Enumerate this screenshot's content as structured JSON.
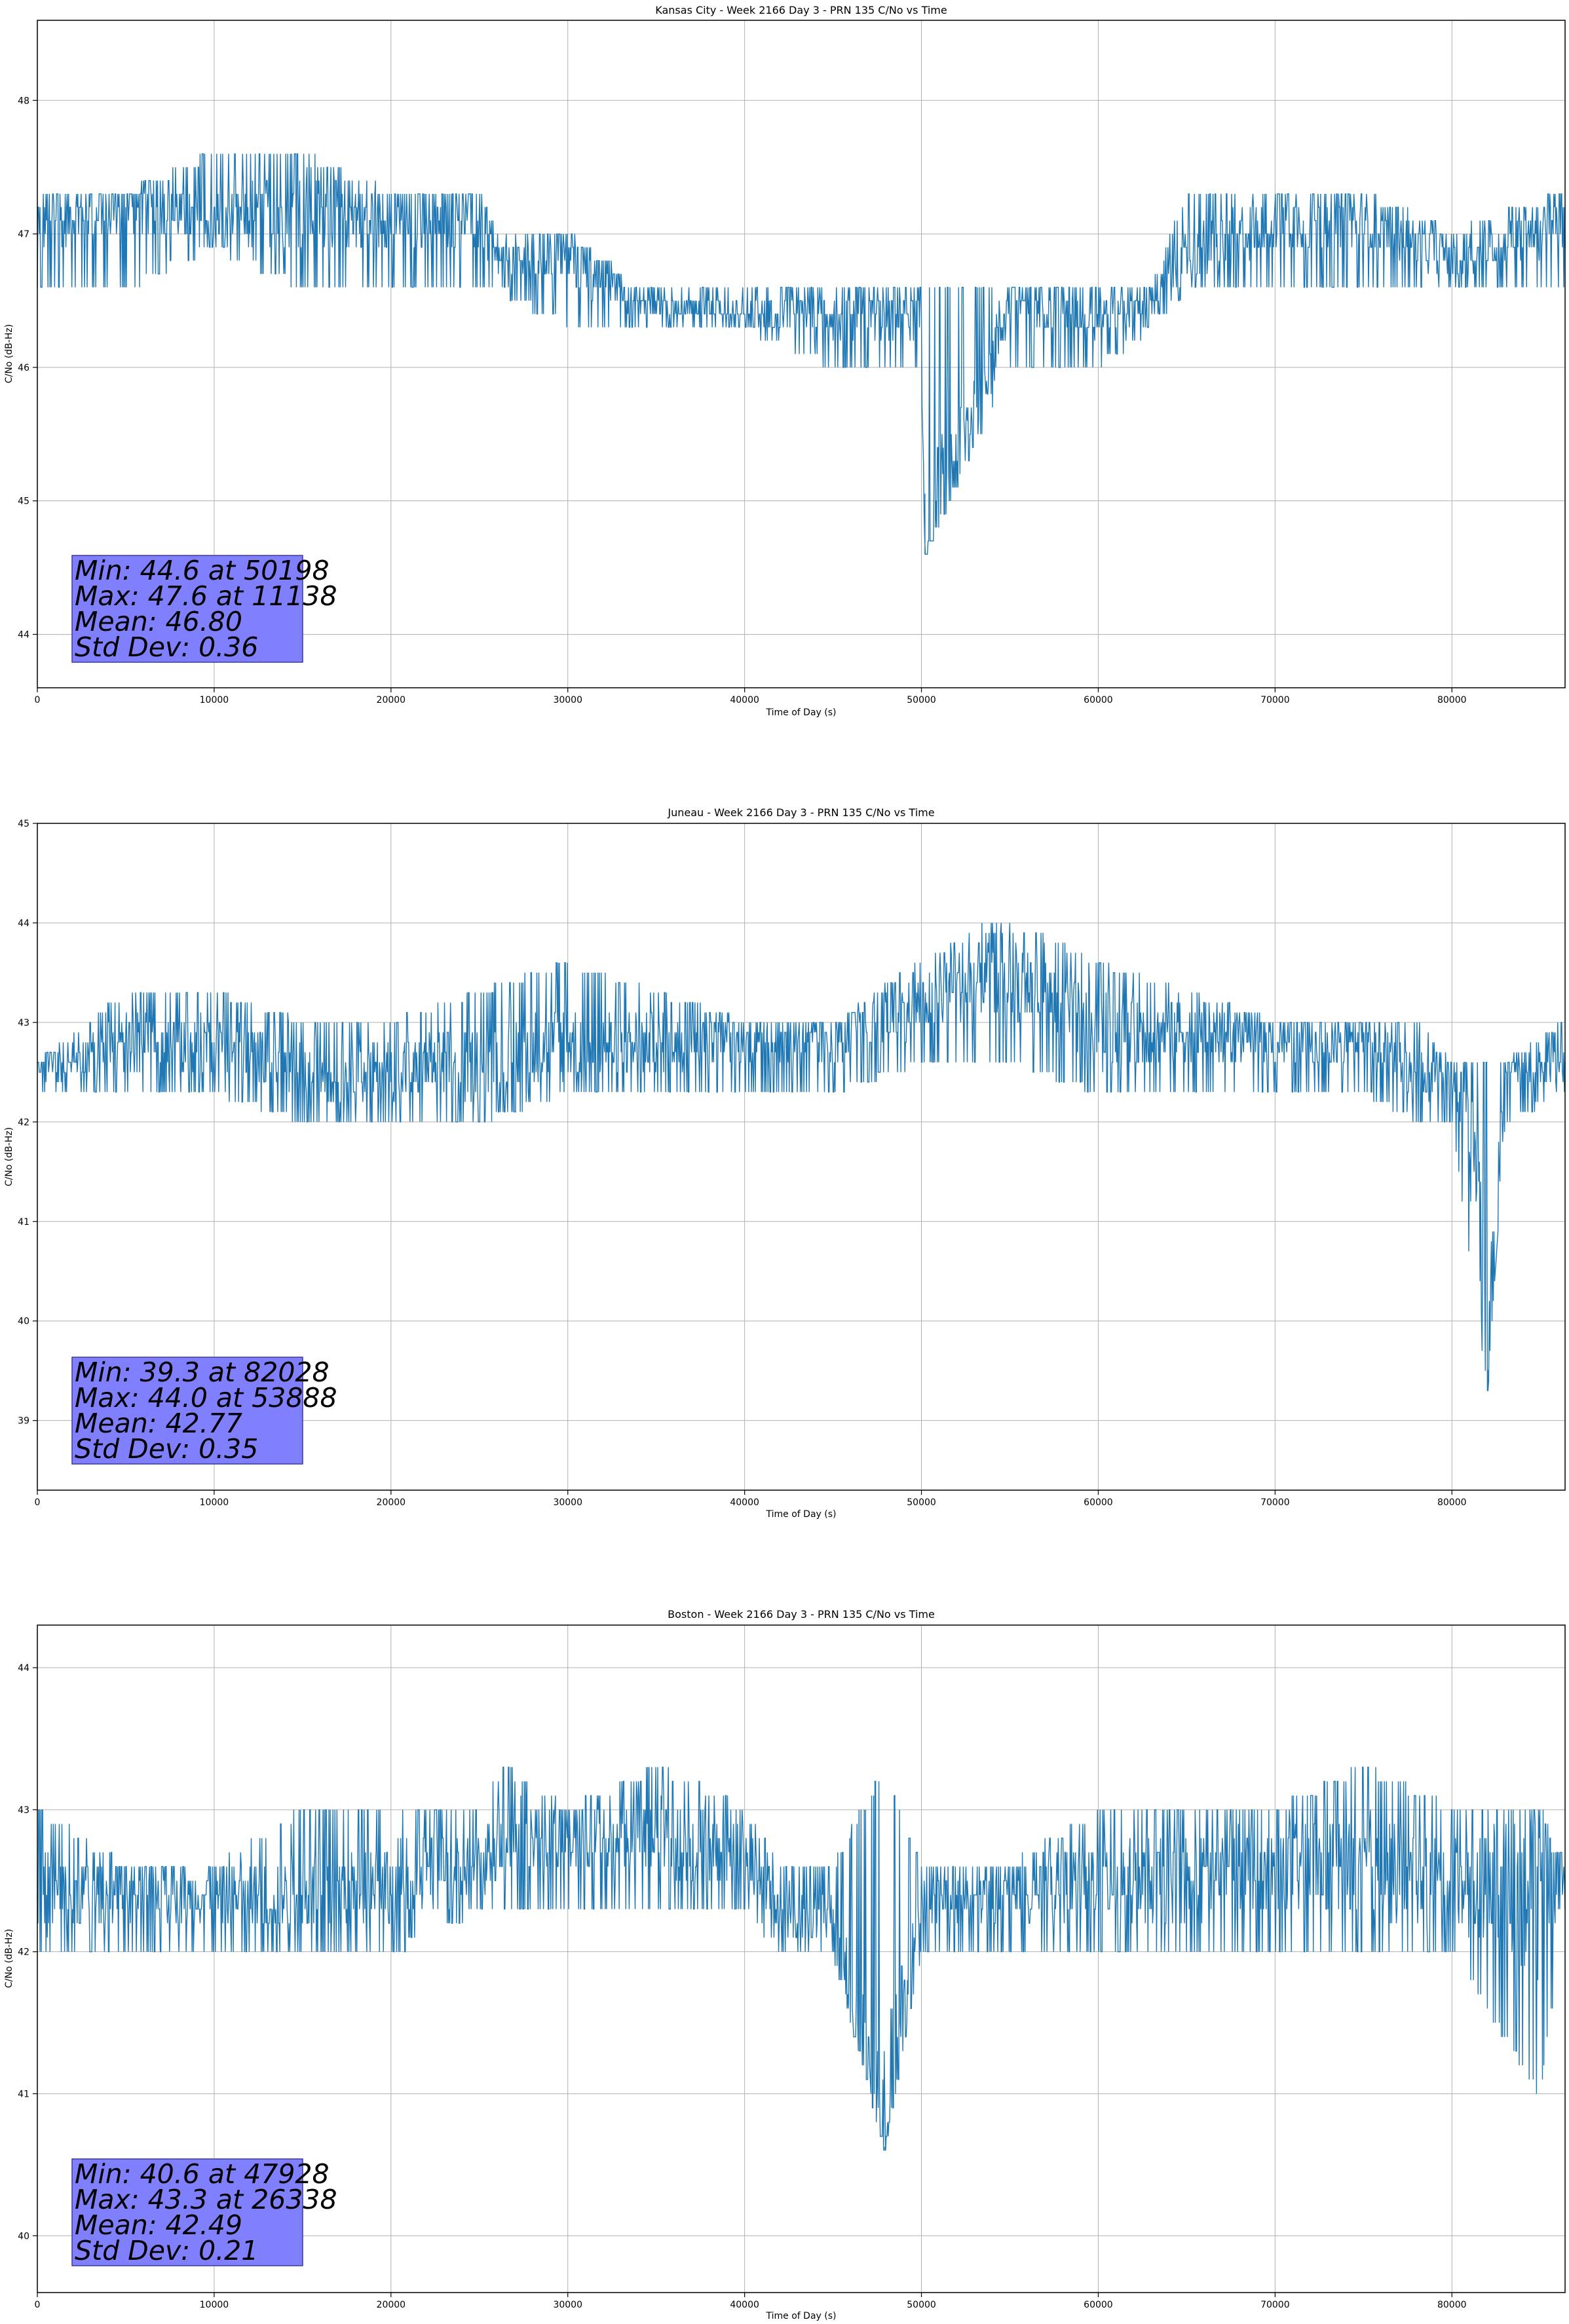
{
  "colors": {
    "series": "#1f77b4",
    "grid": "#b0b0b0",
    "stats_box_fill": "#8080ff",
    "stats_box_edge": "#3a3a9a"
  },
  "chart_data": [
    {
      "type": "line",
      "title": "Kansas City - Week 2166 Day 3 - PRN 135 C/No vs Time",
      "xlabel": "Time of Day (s)",
      "ylabel": "C/No (dB-Hz)",
      "xlim": [
        0,
        86400
      ],
      "ylim": [
        43.6,
        48.6
      ],
      "xticks": [
        0,
        10000,
        20000,
        30000,
        40000,
        50000,
        60000,
        70000,
        80000
      ],
      "xtick_labels": [
        "0",
        "10000",
        "20000",
        "30000",
        "40000",
        "50000",
        "60000",
        "70000",
        "80000"
      ],
      "yticks": [
        44,
        45,
        46,
        47,
        48
      ],
      "ytick_labels": [
        "44",
        "45",
        "46",
        "47",
        "48"
      ],
      "grid": true,
      "series": [
        {
          "x": [
            0,
            5000,
            10000,
            15000,
            20000,
            25000,
            26000,
            30000,
            34000,
            40000,
            45000,
            50000,
            50198,
            55000,
            60000,
            63000,
            65000,
            70000,
            75000,
            80000,
            86400
          ],
          "y": [
            47.1,
            47.2,
            47.1,
            47.2,
            47.1,
            47.1,
            46.8,
            46.8,
            46.5,
            46.4,
            46.4,
            46.4,
            44.6,
            46.5,
            46.4,
            46.5,
            46.8,
            47.1,
            47.1,
            46.8,
            47.1
          ],
          "band_low": [
            46.6,
            46.6,
            46.9,
            46.6,
            46.6,
            46.6,
            46.6,
            46.3,
            46.3,
            46.3,
            46.0,
            46.0,
            44.6,
            46.0,
            46.0,
            46.3,
            46.6,
            46.6,
            46.6,
            46.6,
            46.6
          ],
          "band_high": [
            47.3,
            47.3,
            47.6,
            47.6,
            47.3,
            47.3,
            47.0,
            47.0,
            46.6,
            46.6,
            46.6,
            46.6,
            46.6,
            46.6,
            46.6,
            46.6,
            47.3,
            47.3,
            47.3,
            47.0,
            47.3
          ]
        }
      ],
      "stats": {
        "min": "Min: 44.6 at 50198",
        "max": "Max: 47.6 at 11138",
        "mean": "Mean: 46.80",
        "std": "Std Dev: 0.36"
      }
    },
    {
      "type": "line",
      "title": "Juneau - Week 2166 Day 3 - PRN 135 C/No vs Time",
      "xlabel": "Time of Day (s)",
      "ylabel": "C/No (dB-Hz)",
      "xlim": [
        0,
        86400
      ],
      "ylim": [
        38.3,
        45
      ],
      "xticks": [
        0,
        10000,
        20000,
        30000,
        40000,
        50000,
        60000,
        70000,
        80000
      ],
      "xtick_labels": [
        "0",
        "10000",
        "20000",
        "30000",
        "40000",
        "50000",
        "60000",
        "70000",
        "80000"
      ],
      "yticks": [
        39,
        40,
        41,
        42,
        43,
        44,
        45
      ],
      "ytick_labels": [
        "39",
        "40",
        "41",
        "42",
        "43",
        "44",
        "45"
      ],
      "grid": true,
      "series": [
        {
          "x": [
            0,
            5000,
            10000,
            15000,
            20000,
            25000,
            30000,
            35000,
            40000,
            45000,
            50000,
            53888,
            55000,
            60000,
            65000,
            70000,
            75000,
            78000,
            80000,
            81500,
            82028,
            83000,
            86400
          ],
          "y": [
            42.5,
            42.8,
            42.8,
            42.5,
            42.5,
            42.6,
            42.8,
            42.8,
            42.8,
            42.8,
            43.2,
            43.5,
            43.5,
            42.9,
            42.9,
            42.8,
            42.8,
            42.5,
            42.5,
            41.5,
            39.3,
            42.5,
            42.6
          ],
          "band_low": [
            42.3,
            42.3,
            42.3,
            42.0,
            42.0,
            42.0,
            42.3,
            42.3,
            42.3,
            42.3,
            42.6,
            42.6,
            42.6,
            42.3,
            42.3,
            42.3,
            42.3,
            42.0,
            42.0,
            40.0,
            39.3,
            42.0,
            42.3
          ],
          "band_high": [
            42.6,
            43.3,
            43.3,
            43.0,
            43.0,
            43.3,
            43.6,
            43.3,
            43.0,
            43.0,
            43.6,
            44.0,
            44.0,
            43.6,
            43.3,
            43.0,
            43.0,
            43.0,
            42.6,
            42.6,
            42.6,
            42.6,
            43.0
          ]
        }
      ],
      "stats": {
        "min": "Min: 39.3 at 82028",
        "max": "Max: 44.0 at 53888",
        "mean": "Mean: 42.77",
        "std": "Std Dev: 0.35"
      }
    },
    {
      "type": "line",
      "title": "Boston - Week 2166 Day 3 - PRN 135 C/No vs Time",
      "xlabel": "Time of Day (s)",
      "ylabel": "C/No (dB-Hz)",
      "xlim": [
        0,
        86400
      ],
      "ylim": [
        39.6,
        44.3
      ],
      "xticks": [
        0,
        10000,
        20000,
        30000,
        40000,
        50000,
        60000,
        70000,
        80000
      ],
      "xtick_labels": [
        "0",
        "10000",
        "20000",
        "30000",
        "40000",
        "50000",
        "60000",
        "70000",
        "80000"
      ],
      "yticks": [
        40,
        41,
        42,
        43,
        44
      ],
      "ytick_labels": [
        "40",
        "41",
        "42",
        "43",
        "44"
      ],
      "grid": true,
      "series": [
        {
          "x": [
            0,
            5000,
            10000,
            15000,
            20000,
            25000,
            26338,
            30000,
            35000,
            40000,
            42000,
            45000,
            47928,
            50000,
            55000,
            60000,
            65000,
            70000,
            75000,
            80000,
            85000,
            86400
          ],
          "y": [
            42.4,
            42.4,
            42.4,
            42.4,
            42.5,
            42.6,
            42.8,
            42.8,
            42.8,
            42.7,
            42.3,
            42.2,
            40.6,
            42.4,
            42.4,
            42.5,
            42.5,
            42.6,
            42.6,
            42.5,
            42.4,
            42.5
          ],
          "band_low": [
            42.0,
            42.0,
            42.0,
            42.0,
            42.0,
            42.3,
            42.3,
            42.3,
            42.3,
            42.3,
            42.0,
            42.0,
            40.6,
            42.0,
            42.0,
            42.0,
            42.0,
            42.0,
            42.0,
            42.0,
            41.0,
            42.3
          ],
          "band_high": [
            43.0,
            42.6,
            42.6,
            43.0,
            43.0,
            43.0,
            43.3,
            43.0,
            43.3,
            43.0,
            42.6,
            42.6,
            43.3,
            42.6,
            42.6,
            43.0,
            43.0,
            43.0,
            43.3,
            43.0,
            43.0,
            42.6
          ]
        }
      ],
      "stats": {
        "min": "Min: 40.6 at 47928",
        "max": "Max: 43.3 at 26338",
        "mean": "Mean: 42.49",
        "std": "Std Dev: 0.21"
      }
    }
  ]
}
